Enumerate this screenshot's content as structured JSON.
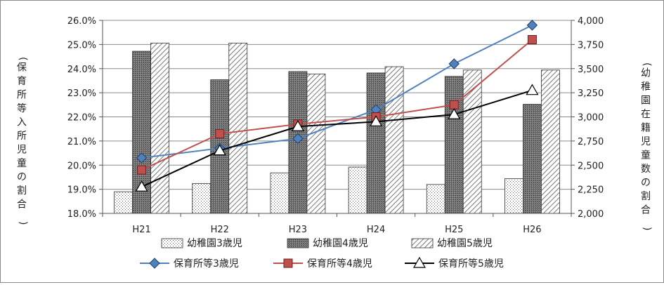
{
  "chart_data": {
    "type": "bar",
    "categories": [
      "H21",
      "H22",
      "H23",
      "H24",
      "H25",
      "H26"
    ],
    "left_axis": {
      "title": "(保育所等入所児童の割合)",
      "min": 18.0,
      "max": 26.0,
      "step": 1.0,
      "ticks": [
        "18.0%",
        "19.0%",
        "20.0%",
        "21.0%",
        "22.0%",
        "23.0%",
        "24.0%",
        "25.0%",
        "26.0%"
      ]
    },
    "right_axis": {
      "title": "(幼稚園在籍児童数の割合)",
      "min": 2000,
      "max": 4000,
      "step": 250,
      "ticks": [
        "2,000",
        "2,250",
        "2,500",
        "2,750",
        "3,000",
        "3,250",
        "3,500",
        "3,750",
        "4,000"
      ]
    },
    "bar_series": [
      {
        "name": "幼稚園3歳児",
        "pattern": "dots",
        "axis": "right",
        "values": [
          2225,
          2310,
          2420,
          2480,
          2300,
          2360
        ]
      },
      {
        "name": "幼稚園4歳児",
        "pattern": "dark",
        "axis": "right",
        "values": [
          3680,
          3385,
          3470,
          3455,
          3420,
          3130
        ]
      },
      {
        "name": "幼稚園5歳児",
        "pattern": "hatch",
        "axis": "right",
        "values": [
          3765,
          3765,
          3445,
          3520,
          3485,
          3485
        ]
      }
    ],
    "line_series": [
      {
        "name": "保育所等3歳児",
        "marker": "diamond",
        "color": "#4f81bd",
        "axis": "left",
        "values": [
          20.3,
          20.7,
          21.1,
          22.3,
          24.2,
          25.8
        ]
      },
      {
        "name": "保育所等4歳児",
        "marker": "square",
        "color": "#c0504d",
        "axis": "left",
        "values": [
          19.8,
          21.3,
          21.7,
          22.0,
          22.5,
          25.2
        ]
      },
      {
        "name": "保育所等5歳児",
        "marker": "triangle",
        "color": "#000000",
        "axis": "left",
        "values": [
          19.1,
          20.6,
          21.6,
          21.8,
          22.1,
          23.1
        ]
      }
    ],
    "grid": true,
    "legend_position": "bottom"
  }
}
